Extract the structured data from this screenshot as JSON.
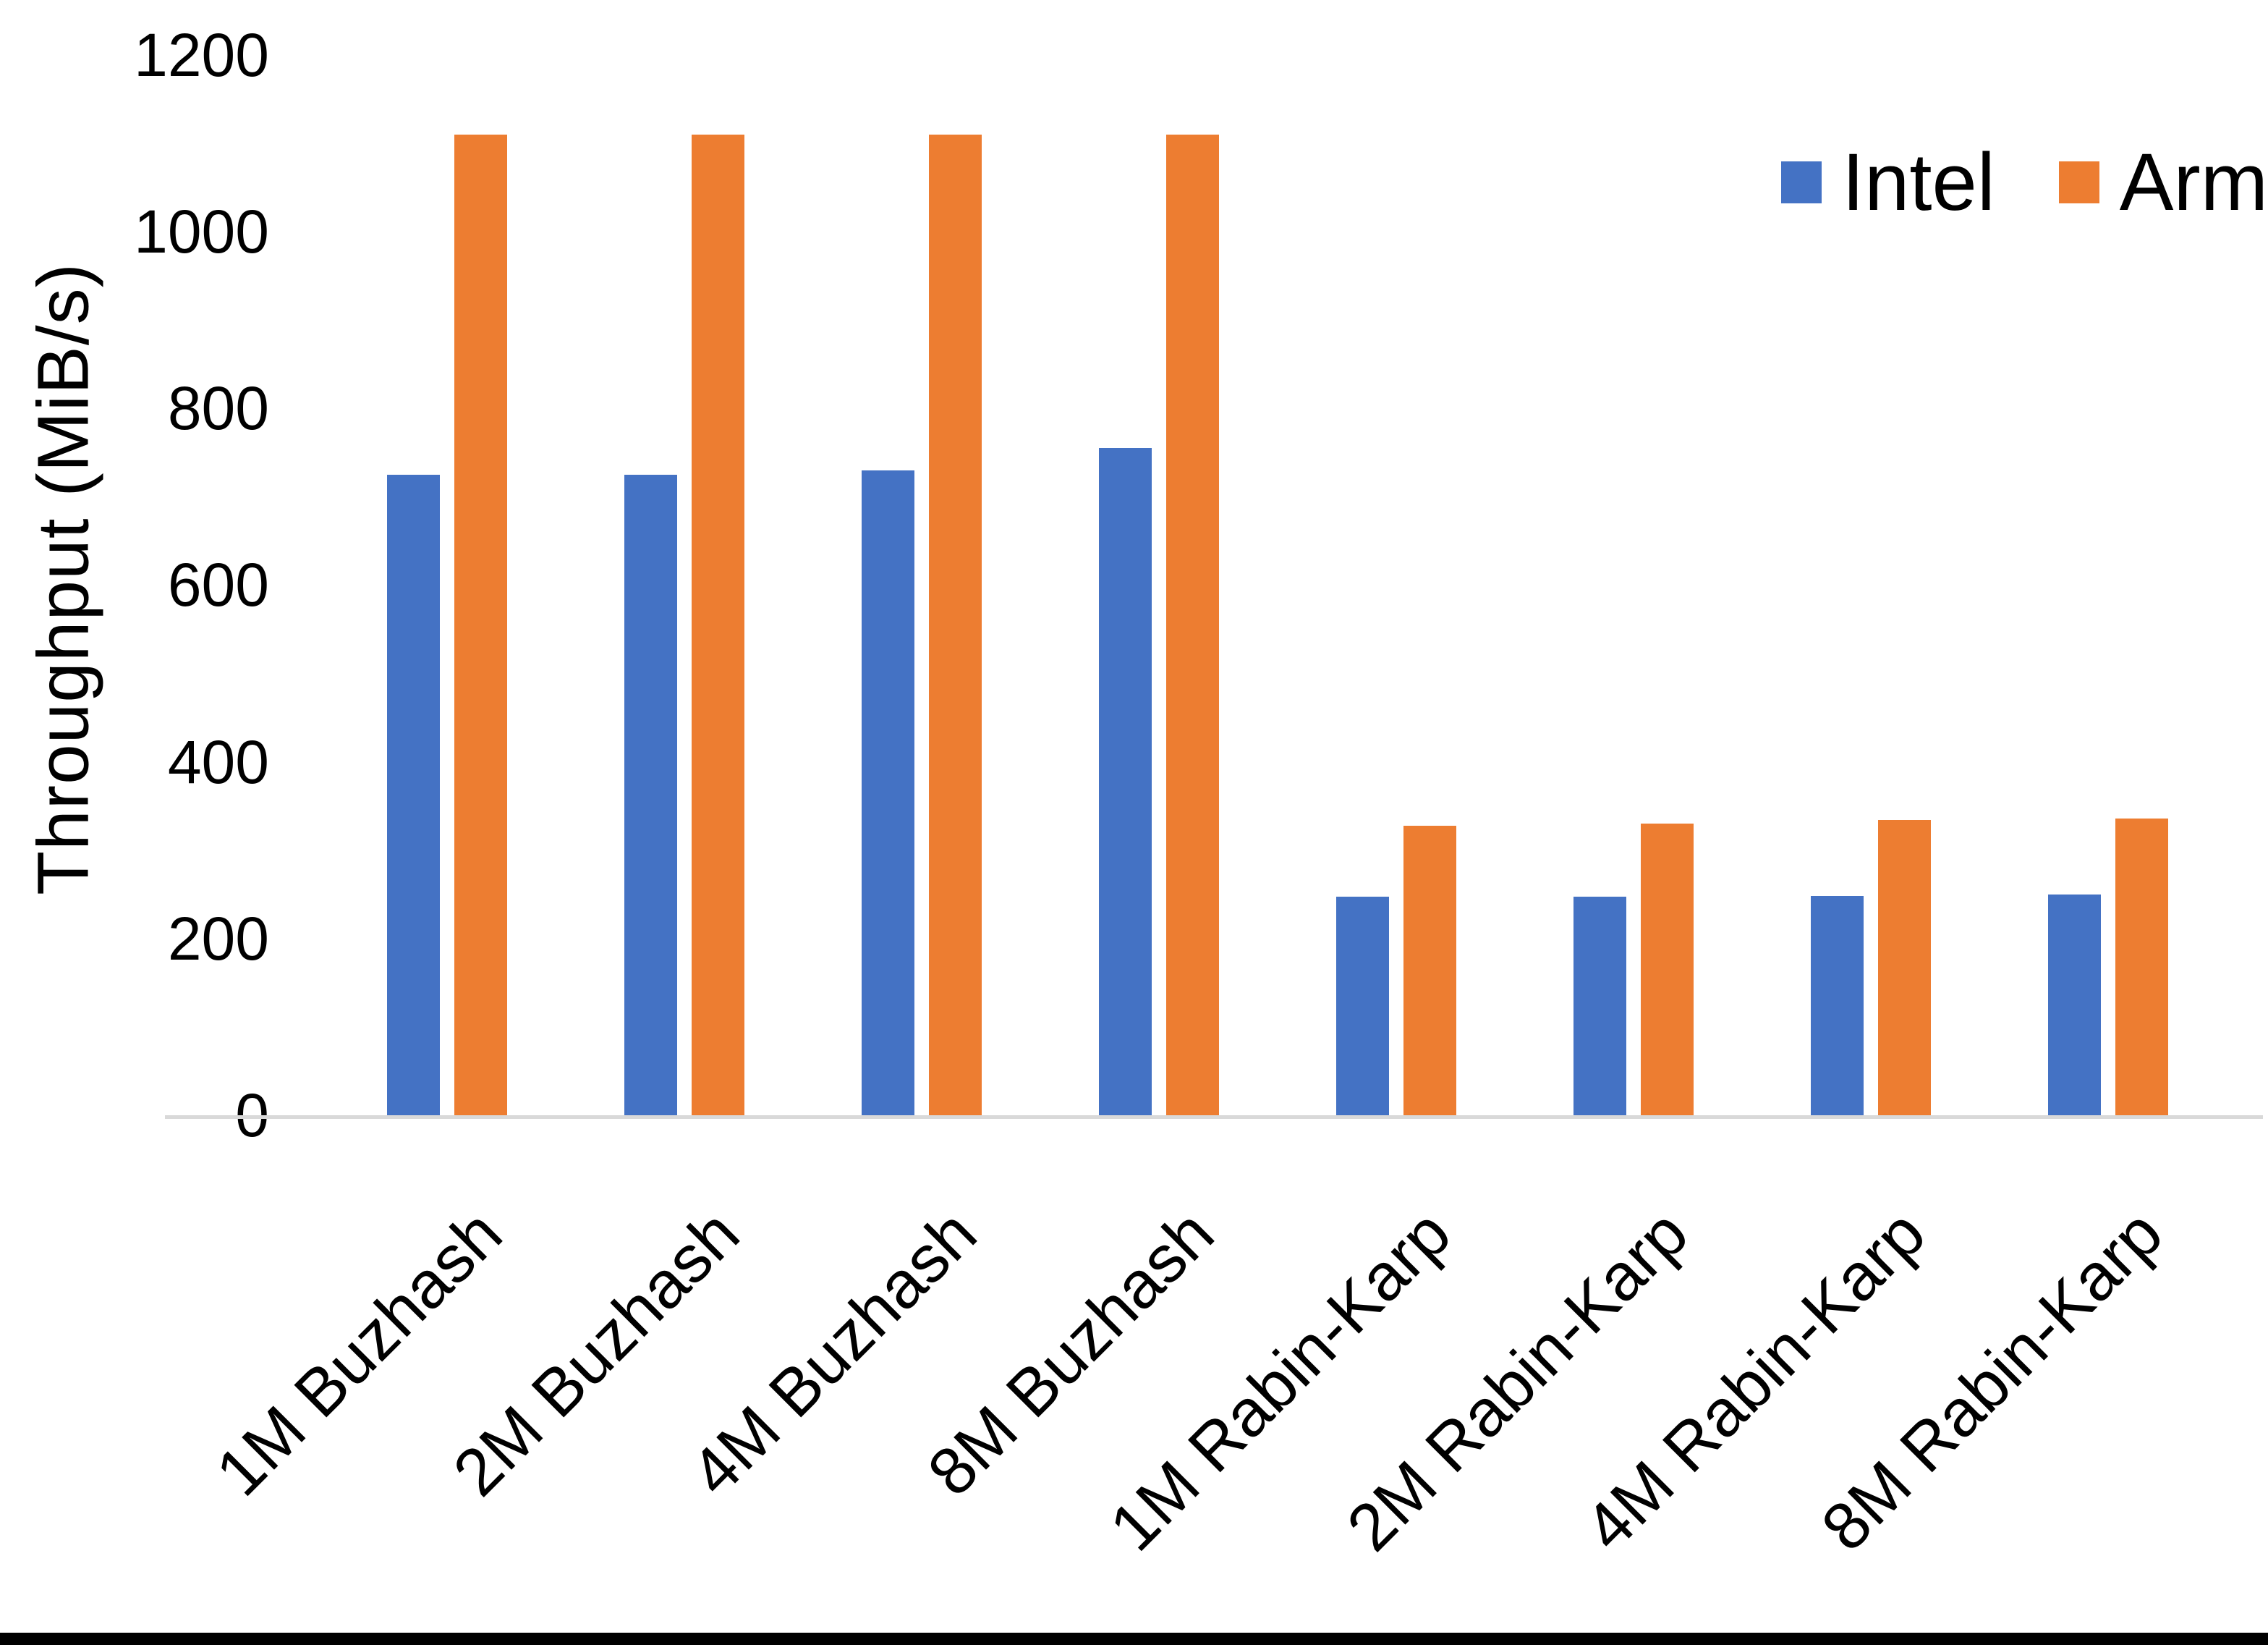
{
  "chart_data": {
    "type": "bar",
    "title": "",
    "categories": [
      "1M Buzhash",
      "2M Buzhash",
      "4M Buzhash",
      "8M Buzhash",
      "1M Rabin-Karp",
      "2M Rabin-Karp",
      "4M Rabin-Karp",
      "8M Rabin-Karp"
    ],
    "series": [
      {
        "name": "Intel",
        "color": "#4472C4",
        "values": [
          725,
          725,
          730,
          755,
          247,
          247,
          248,
          250
        ]
      },
      {
        "name": "Arm",
        "color": "#ED7D31",
        "values": [
          1110,
          1110,
          1110,
          1110,
          328,
          330,
          334,
          336
        ]
      }
    ],
    "xlabel": "",
    "ylabel": "Throughput (MiB/s)",
    "yticks": [
      0,
      200,
      400,
      600,
      800,
      1000,
      1200
    ],
    "ylim": [
      0,
      1200
    ],
    "grid": false,
    "legend_position": "top-right",
    "axis_line_color": "#d9d9d9",
    "text_color": "#000000"
  }
}
